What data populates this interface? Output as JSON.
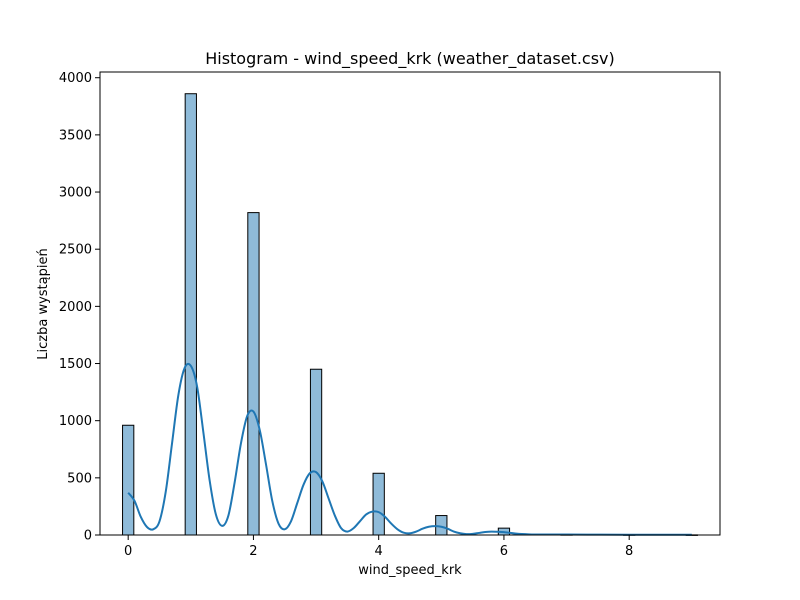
{
  "chart_data": {
    "type": "bar",
    "title": "Histogram - wind_speed_krk (weather_dataset.csv)",
    "xlabel": "wind_speed_krk",
    "ylabel": "Liczba wystąpień",
    "xlim": [
      -0.45,
      9.45
    ],
    "ylim": [
      0,
      4050
    ],
    "x_ticks": [
      0,
      2,
      4,
      6,
      8
    ],
    "y_ticks": [
      0,
      500,
      1000,
      1500,
      2000,
      2500,
      3000,
      3500,
      4000
    ],
    "grid": false,
    "bar_color": "#1f77b4",
    "kde_color": "#1f77b4",
    "bin_width": 0.18,
    "bars": [
      {
        "x": 0,
        "value": 960
      },
      {
        "x": 1,
        "value": 3860
      },
      {
        "x": 2,
        "value": 2820
      },
      {
        "x": 3,
        "value": 1450
      },
      {
        "x": 4,
        "value": 540
      },
      {
        "x": 5,
        "value": 170
      },
      {
        "x": 6,
        "value": 60
      },
      {
        "x": 7,
        "value": 3
      },
      {
        "x": 8,
        "value": 2
      },
      {
        "x": 9,
        "value": 1
      }
    ],
    "kde": [
      [
        0.0,
        370
      ],
      [
        0.1,
        300
      ],
      [
        0.2,
        160
      ],
      [
        0.3,
        70
      ],
      [
        0.4,
        50
      ],
      [
        0.5,
        120
      ],
      [
        0.6,
        380
      ],
      [
        0.7,
        800
      ],
      [
        0.8,
        1220
      ],
      [
        0.9,
        1460
      ],
      [
        1.0,
        1480
      ],
      [
        1.1,
        1300
      ],
      [
        1.2,
        900
      ],
      [
        1.3,
        480
      ],
      [
        1.4,
        180
      ],
      [
        1.5,
        80
      ],
      [
        1.6,
        170
      ],
      [
        1.7,
        460
      ],
      [
        1.8,
        800
      ],
      [
        1.9,
        1040
      ],
      [
        2.0,
        1080
      ],
      [
        2.1,
        920
      ],
      [
        2.2,
        620
      ],
      [
        2.3,
        300
      ],
      [
        2.4,
        100
      ],
      [
        2.5,
        50
      ],
      [
        2.6,
        120
      ],
      [
        2.7,
        280
      ],
      [
        2.8,
        440
      ],
      [
        2.9,
        540
      ],
      [
        3.0,
        550
      ],
      [
        3.1,
        470
      ],
      [
        3.2,
        320
      ],
      [
        3.3,
        170
      ],
      [
        3.4,
        60
      ],
      [
        3.5,
        30
      ],
      [
        3.6,
        60
      ],
      [
        3.7,
        120
      ],
      [
        3.8,
        180
      ],
      [
        3.9,
        205
      ],
      [
        4.0,
        200
      ],
      [
        4.1,
        160
      ],
      [
        4.2,
        100
      ],
      [
        4.3,
        50
      ],
      [
        4.4,
        20
      ],
      [
        4.5,
        15
      ],
      [
        4.6,
        30
      ],
      [
        4.7,
        55
      ],
      [
        4.8,
        72
      ],
      [
        4.9,
        78
      ],
      [
        5.0,
        72
      ],
      [
        5.1,
        55
      ],
      [
        5.2,
        30
      ],
      [
        5.3,
        15
      ],
      [
        5.4,
        8
      ],
      [
        5.5,
        10
      ],
      [
        5.6,
        18
      ],
      [
        5.7,
        26
      ],
      [
        5.8,
        30
      ],
      [
        5.9,
        28
      ],
      [
        6.0,
        25
      ],
      [
        6.2,
        12
      ],
      [
        6.4,
        6
      ],
      [
        6.6,
        4
      ],
      [
        7.0,
        4
      ],
      [
        7.5,
        3
      ],
      [
        8.0,
        2
      ],
      [
        8.5,
        2
      ],
      [
        9.0,
        2
      ]
    ]
  }
}
